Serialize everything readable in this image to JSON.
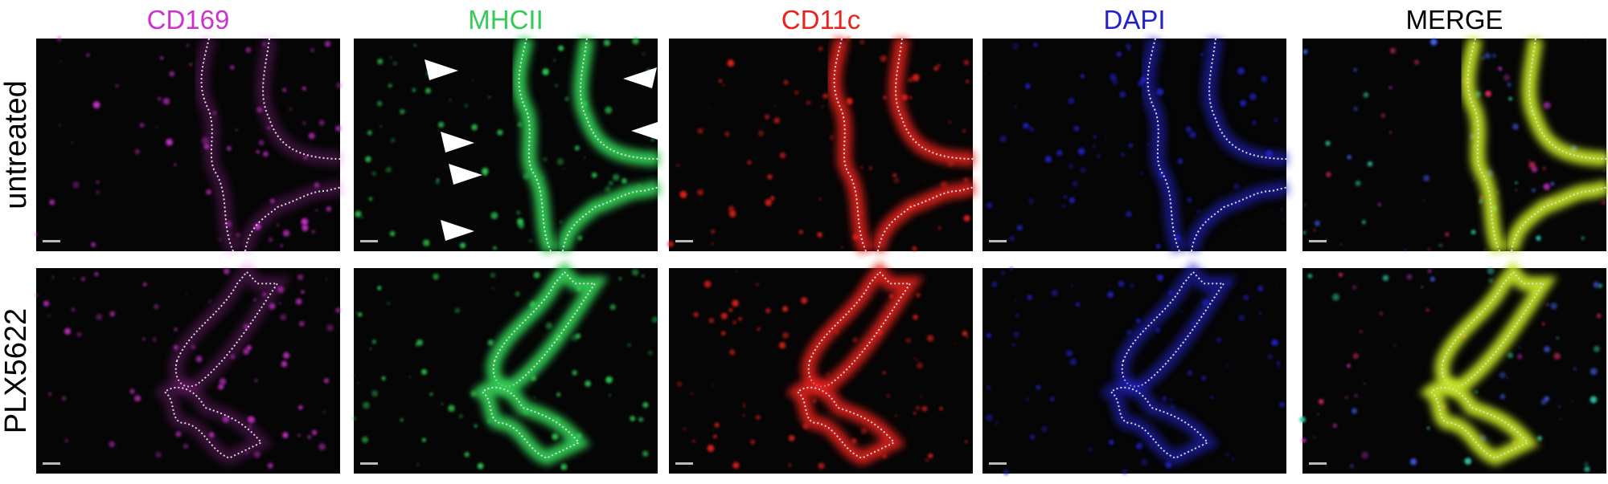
{
  "columns": [
    {
      "label": "CD169",
      "color": "#cc33cc"
    },
    {
      "label": "MHCII",
      "color": "#33cc55"
    },
    {
      "label": "CD11c",
      "color": "#e8221c"
    },
    {
      "label": "DAPI",
      "color": "#2222cc"
    },
    {
      "label": "MERGE",
      "color": "#000000"
    }
  ],
  "rows": [
    {
      "label": "untreated"
    },
    {
      "label": "PLX5622"
    }
  ]
}
